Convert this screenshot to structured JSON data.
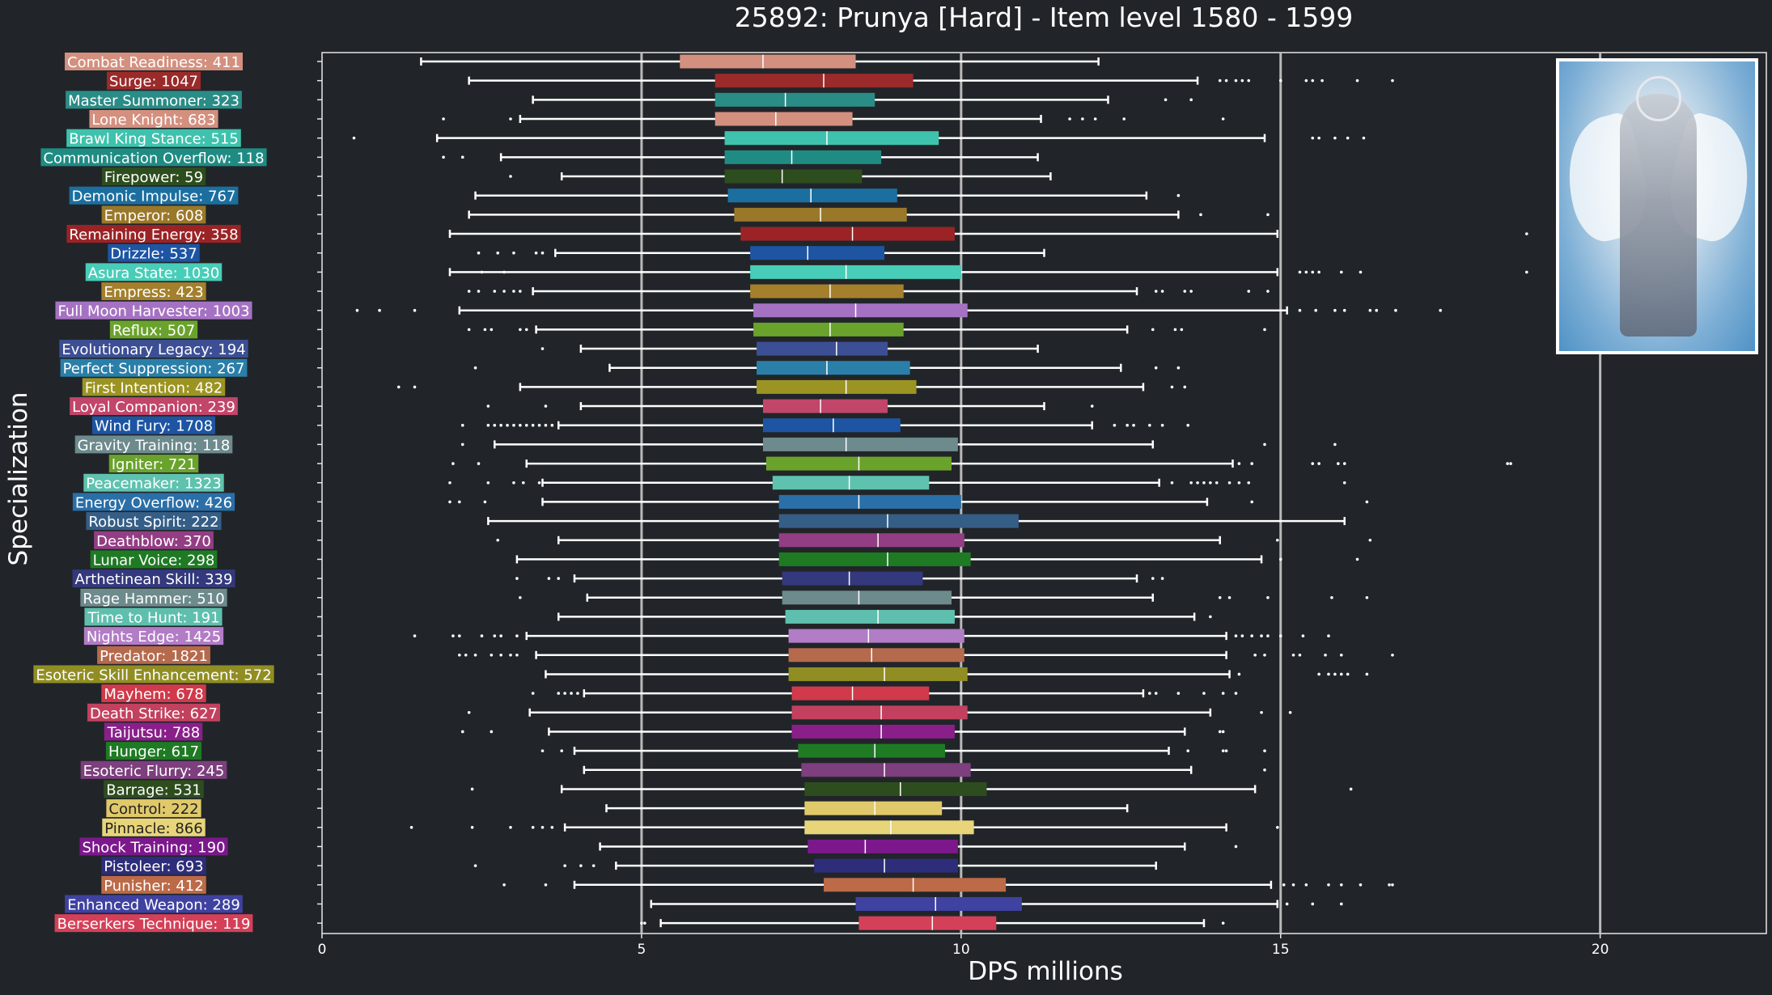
{
  "chart_data": {
    "type": "box",
    "title": "25892: Prunya [Hard] - Item level 1580 - 1599",
    "xlabel": "DPS millions",
    "ylabel": "Specialization",
    "xlim": [
      0,
      22.6
    ],
    "xticks": [
      0,
      5,
      10,
      15,
      20
    ],
    "grid": "vertical lines at 5, 10, 15, 20",
    "series": [
      {
        "label": "Combat Readiness: 411",
        "color": "#d4907f",
        "whislo": 1.55,
        "q1": 5.6,
        "median": 6.9,
        "q3": 8.35,
        "whishi": 12.15,
        "fliers": []
      },
      {
        "label": "Surge: 1047",
        "color": "#9b2a2a",
        "whislo": 2.3,
        "q1": 6.15,
        "median": 7.85,
        "q3": 9.25,
        "whishi": 13.7,
        "fliers": [
          14.05,
          14.15,
          14.3,
          14.4,
          14.5,
          15.0,
          15.4,
          15.5,
          15.65,
          16.2,
          16.75
        ]
      },
      {
        "label": "Master Summoner: 323",
        "color": "#2a8c86",
        "whislo": 3.3,
        "q1": 6.15,
        "median": 7.25,
        "q3": 8.65,
        "whishi": 12.3,
        "fliers": [
          13.2,
          13.6
        ]
      },
      {
        "label": "Lone Knight: 683",
        "color": "#d4907f",
        "whislo": 3.1,
        "q1": 6.15,
        "median": 7.1,
        "q3": 8.3,
        "whishi": 11.25,
        "fliers": [
          1.9,
          2.95,
          11.7,
          11.9,
          12.1,
          12.55,
          14.1
        ]
      },
      {
        "label": "Brawl King Stance: 515",
        "color": "#3ec2ad",
        "whislo": 1.8,
        "q1": 6.3,
        "median": 7.9,
        "q3": 9.65,
        "whishi": 14.75,
        "fliers": [
          0.5,
          15.5,
          15.6,
          15.85,
          16.05,
          16.3
        ]
      },
      {
        "label": "Communication Overflow: 118",
        "color": "#1f8c83",
        "whislo": 2.8,
        "q1": 6.3,
        "median": 7.35,
        "q3": 8.75,
        "whishi": 11.2,
        "fliers": [
          1.9,
          2.2
        ]
      },
      {
        "label": "Firepower: 59",
        "color": "#2e4d1e",
        "whislo": 3.75,
        "q1": 6.3,
        "median": 7.2,
        "q3": 8.45,
        "whishi": 11.4,
        "fliers": [
          2.95
        ]
      },
      {
        "label": "Demonic Impulse: 767",
        "color": "#1b6fa0",
        "whislo": 2.4,
        "q1": 6.35,
        "median": 7.65,
        "q3": 9.0,
        "whishi": 12.9,
        "fliers": [
          13.4
        ]
      },
      {
        "label": "Emperor: 608",
        "color": "#9a782a",
        "whislo": 2.3,
        "q1": 6.45,
        "median": 7.8,
        "q3": 9.15,
        "whishi": 13.4,
        "fliers": [
          13.75,
          14.8
        ]
      },
      {
        "label": "Remaining Energy: 358",
        "color": "#9b2326",
        "whislo": 2.0,
        "q1": 6.55,
        "median": 8.3,
        "q3": 9.9,
        "whishi": 14.95,
        "fliers": [
          18.85
        ]
      },
      {
        "label": "Drizzle: 537",
        "color": "#1d55a3",
        "whislo": 3.65,
        "q1": 6.7,
        "median": 7.6,
        "q3": 8.8,
        "whishi": 11.3,
        "fliers": [
          2.45,
          2.75,
          3.0,
          3.35,
          3.45
        ]
      },
      {
        "label": "Asura State: 1030",
        "color": "#48cdb8",
        "whislo": 2.0,
        "q1": 6.7,
        "median": 8.2,
        "q3": 10.0,
        "whishi": 14.95,
        "fliers": [
          2.5,
          2.85,
          15.3,
          15.4,
          15.5,
          15.6,
          15.95,
          16.25,
          18.85
        ]
      },
      {
        "label": "Empress: 423",
        "color": "#a4802c",
        "whislo": 3.3,
        "q1": 6.7,
        "median": 7.95,
        "q3": 9.1,
        "whishi": 12.75,
        "fliers": [
          2.3,
          2.45,
          2.7,
          2.85,
          3.0,
          3.1,
          13.05,
          13.15,
          13.5,
          13.6,
          14.5,
          14.8
        ]
      },
      {
        "label": "Full Moon Harvester: 1003",
        "color": "#a572c3",
        "whislo": 2.15,
        "q1": 6.75,
        "median": 8.35,
        "q3": 10.1,
        "whishi": 15.1,
        "fliers": [
          0.55,
          0.9,
          1.45,
          15.3,
          15.55,
          15.85,
          16.0,
          16.4,
          16.5,
          16.8,
          17.5
        ]
      },
      {
        "label": "Reflux: 507",
        "color": "#6aa32c",
        "whislo": 3.35,
        "q1": 6.75,
        "median": 7.95,
        "q3": 9.1,
        "whishi": 12.6,
        "fliers": [
          2.3,
          2.55,
          2.65,
          3.1,
          3.2,
          13.0,
          13.35,
          13.45,
          14.75
        ]
      },
      {
        "label": "Evolutionary Legacy: 194",
        "color": "#3d4f94",
        "whislo": 4.05,
        "q1": 6.8,
        "median": 8.05,
        "q3": 8.85,
        "whishi": 11.2,
        "fliers": [
          3.45
        ]
      },
      {
        "label": "Perfect Suppression: 267",
        "color": "#2a7fa8",
        "whislo": 4.5,
        "q1": 6.8,
        "median": 7.9,
        "q3": 9.2,
        "whishi": 12.5,
        "fliers": [
          2.4,
          13.05,
          13.4
        ]
      },
      {
        "label": "First Intention: 482",
        "color": "#9c9422",
        "whislo": 3.1,
        "q1": 6.8,
        "median": 8.2,
        "q3": 9.3,
        "whishi": 12.85,
        "fliers": [
          1.2,
          1.45,
          13.3,
          13.5
        ]
      },
      {
        "label": "Loyal Companion: 239",
        "color": "#c2456a",
        "whislo": 4.05,
        "q1": 6.9,
        "median": 7.8,
        "q3": 8.85,
        "whishi": 11.3,
        "fliers": [
          2.6,
          3.5,
          12.05
        ]
      },
      {
        "label": "Wind Fury: 1708",
        "color": "#1d55a3",
        "whislo": 3.7,
        "q1": 6.9,
        "median": 8.0,
        "q3": 9.05,
        "whishi": 12.05,
        "fliers": [
          2.2,
          2.6,
          2.7,
          2.8,
          2.9,
          3.0,
          3.1,
          3.2,
          3.3,
          3.4,
          3.5,
          3.6,
          12.4,
          12.6,
          12.7,
          12.95,
          13.15,
          13.55
        ]
      },
      {
        "label": "Gravity Training: 118",
        "color": "#6d8a8c",
        "whislo": 2.7,
        "q1": 6.9,
        "median": 8.2,
        "q3": 9.95,
        "whishi": 13.0,
        "fliers": [
          2.2,
          14.75,
          15.85
        ]
      },
      {
        "label": "Igniter: 721",
        "color": "#6aa32c",
        "whislo": 3.2,
        "q1": 6.95,
        "median": 8.4,
        "q3": 9.85,
        "whishi": 14.25,
        "fliers": [
          2.05,
          2.45,
          14.35,
          14.55,
          15.5,
          15.6,
          15.9,
          16.0,
          18.55,
          18.6
        ]
      },
      {
        "label": "Peacemaker: 1323",
        "color": "#5fc2ae",
        "whislo": 3.45,
        "q1": 7.05,
        "median": 8.25,
        "q3": 9.5,
        "whishi": 13.1,
        "fliers": [
          2.0,
          2.6,
          3.0,
          3.15,
          3.4,
          13.3,
          13.6,
          13.7,
          13.8,
          13.9,
          14.0,
          14.2,
          14.35,
          14.5,
          16.0
        ]
      },
      {
        "label": "Energy Overflow: 426",
        "color": "#2a6fa8",
        "whislo": 3.45,
        "q1": 7.15,
        "median": 8.4,
        "q3": 10.0,
        "whishi": 13.85,
        "fliers": [
          2.0,
          2.15,
          2.55,
          14.55,
          16.35
        ]
      },
      {
        "label": "Robust Spirit: 222",
        "color": "#355e87",
        "whislo": 2.6,
        "q1": 7.15,
        "median": 8.85,
        "q3": 10.9,
        "whishi": 16.0,
        "fliers": []
      },
      {
        "label": "Deathblow: 370",
        "color": "#933e84",
        "whislo": 3.7,
        "q1": 7.15,
        "median": 8.7,
        "q3": 10.05,
        "whishi": 14.05,
        "fliers": [
          2.75,
          14.95,
          16.4
        ]
      },
      {
        "label": "Lunar Voice: 298",
        "color": "#1f7a24",
        "whislo": 3.05,
        "q1": 7.15,
        "median": 8.85,
        "q3": 10.15,
        "whishi": 14.7,
        "fliers": [
          15.0,
          16.2
        ]
      },
      {
        "label": "Arthetinean Skill: 339",
        "color": "#34397d",
        "whislo": 3.95,
        "q1": 7.2,
        "median": 8.25,
        "q3": 9.4,
        "whishi": 12.75,
        "fliers": [
          3.05,
          3.55,
          3.7,
          13.0,
          13.15
        ]
      },
      {
        "label": "Rage Hammer: 510",
        "color": "#6d8a8c",
        "whislo": 4.15,
        "q1": 7.2,
        "median": 8.4,
        "q3": 9.85,
        "whishi": 13.0,
        "fliers": [
          3.1,
          14.05,
          14.2,
          14.8,
          15.8,
          16.35
        ]
      },
      {
        "label": "Time to Hunt: 191",
        "color": "#5fbfae",
        "whislo": 3.7,
        "q1": 7.25,
        "median": 8.7,
        "q3": 9.9,
        "whishi": 13.65,
        "fliers": [
          13.9
        ]
      },
      {
        "label": "Nights Edge: 1425",
        "color": "#b27cc6",
        "whislo": 3.2,
        "q1": 7.3,
        "median": 8.55,
        "q3": 10.05,
        "whishi": 14.15,
        "fliers": [
          1.45,
          2.05,
          2.15,
          2.5,
          2.7,
          2.8,
          3.05,
          14.3,
          14.4,
          14.55,
          14.7,
          14.8,
          15.0,
          15.35,
          15.75
        ]
      },
      {
        "label": "Predator: 1821",
        "color": "#b56a4d",
        "whislo": 3.35,
        "q1": 7.3,
        "median": 8.6,
        "q3": 10.05,
        "whishi": 14.15,
        "fliers": [
          2.15,
          2.25,
          2.4,
          2.65,
          2.8,
          2.95,
          3.05,
          14.6,
          14.75,
          15.2,
          15.3,
          15.7,
          15.95,
          16.75
        ]
      },
      {
        "label": "Esoteric Skill Enhancement: 572",
        "color": "#908e23",
        "whislo": 3.5,
        "q1": 7.3,
        "median": 8.8,
        "q3": 10.1,
        "whishi": 14.2,
        "fliers": [
          14.35,
          15.6,
          15.75,
          15.85,
          15.95,
          16.05,
          16.35
        ]
      },
      {
        "label": "Mayhem: 678",
        "color": "#d03a4a",
        "whislo": 4.1,
        "q1": 7.35,
        "median": 8.3,
        "q3": 9.5,
        "whishi": 12.85,
        "fliers": [
          3.3,
          3.7,
          3.8,
          3.9,
          4.0,
          12.95,
          13.05,
          13.4,
          13.8,
          14.1,
          14.3
        ]
      },
      {
        "label": "Death Strike: 627",
        "color": "#c2415e",
        "whislo": 3.25,
        "q1": 7.35,
        "median": 8.75,
        "q3": 10.1,
        "whishi": 13.9,
        "fliers": [
          2.3,
          14.7,
          15.15
        ]
      },
      {
        "label": "Taijutsu: 788",
        "color": "#8a1f8a",
        "whislo": 3.55,
        "q1": 7.35,
        "median": 8.75,
        "q3": 9.9,
        "whishi": 13.5,
        "fliers": [
          2.2,
          2.65,
          14.05,
          14.1
        ]
      },
      {
        "label": "Hunger: 617",
        "color": "#1f7a24",
        "whislo": 3.95,
        "q1": 7.45,
        "median": 8.65,
        "q3": 9.75,
        "whishi": 13.25,
        "fliers": [
          3.45,
          3.75,
          13.55,
          14.1,
          14.15,
          14.75
        ]
      },
      {
        "label": "Esoteric Flurry: 245",
        "color": "#7d3f7d",
        "whislo": 4.1,
        "q1": 7.5,
        "median": 8.8,
        "q3": 10.15,
        "whishi": 13.6,
        "fliers": [
          14.75
        ]
      },
      {
        "label": "Barrage: 531",
        "color": "#2e4d1e",
        "whislo": 3.75,
        "q1": 7.55,
        "median": 9.05,
        "q3": 10.4,
        "whishi": 14.6,
        "fliers": [
          2.35,
          16.1
        ]
      },
      {
        "label": "Control: 222",
        "color": "#e0c96a",
        "whislo": 4.45,
        "q1": 7.55,
        "median": 8.65,
        "q3": 9.7,
        "whishi": 12.6,
        "fliers": []
      },
      {
        "label": "Pinnacle: 866",
        "color": "#e8d57a",
        "whislo": 3.8,
        "q1": 7.55,
        "median": 8.9,
        "q3": 10.2,
        "whishi": 14.15,
        "fliers": [
          1.4,
          2.35,
          2.95,
          3.3,
          3.45,
          3.6,
          14.95
        ]
      },
      {
        "label": "Shock Training: 190",
        "color": "#7c188c",
        "whislo": 4.35,
        "q1": 7.6,
        "median": 8.5,
        "q3": 9.95,
        "whishi": 13.5,
        "fliers": [
          14.3
        ]
      },
      {
        "label": "Pistoleer: 693",
        "color": "#2d2d7a",
        "whislo": 4.6,
        "q1": 7.7,
        "median": 8.8,
        "q3": 9.95,
        "whishi": 13.05,
        "fliers": [
          2.4,
          3.8,
          4.05,
          4.25
        ]
      },
      {
        "label": "Punisher: 412",
        "color": "#bc6a47",
        "whislo": 3.95,
        "q1": 7.85,
        "median": 9.25,
        "q3": 10.7,
        "whishi": 14.85,
        "fliers": [
          2.85,
          3.5,
          15.05,
          15.2,
          15.4,
          15.75,
          15.95,
          16.25,
          16.7,
          16.75
        ]
      },
      {
        "label": "Enhanced Weapon: 289",
        "color": "#3f42a0",
        "whislo": 5.15,
        "q1": 8.35,
        "median": 9.6,
        "q3": 10.95,
        "whishi": 14.95,
        "fliers": [
          15.1,
          15.5,
          15.95
        ]
      },
      {
        "label": "Berserkers Technique: 119",
        "color": "#d44058",
        "whislo": 5.3,
        "q1": 8.4,
        "median": 9.55,
        "q3": 10.55,
        "whishi": 13.8,
        "fliers": [
          5.0,
          5.05,
          14.1
        ]
      }
    ]
  }
}
